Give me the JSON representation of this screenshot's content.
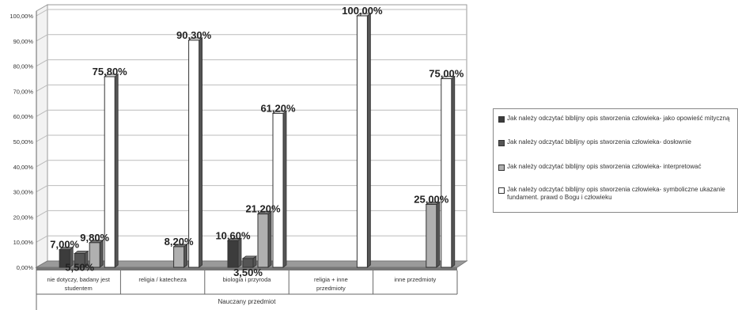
{
  "chart_data": {
    "type": "bar",
    "xlabel": "Nauczany przedmiot",
    "ylabel": "",
    "ylim": [
      0,
      100
    ],
    "y_ticks": [
      "0,00%",
      "10,00%",
      "20,00%",
      "30,00%",
      "40,00%",
      "50,00%",
      "60,00%",
      "70,00%",
      "80,00%",
      "90,00%",
      "100,00%"
    ],
    "categories": [
      "nie dotyczy, badany jest studentem",
      "religia / katecheza",
      "biologia i przyroda",
      "religia + inne przedmioty",
      "inne przedmioty"
    ],
    "series": [
      {
        "name": "Jak należy odczytać biblijny opis stworzenia człowieka- jako opowieść mityczną",
        "color": "#3c3c3c",
        "values": [
          7.0,
          null,
          10.6,
          null,
          null
        ],
        "labels": [
          "7,00%",
          "",
          "10,60%",
          "",
          ""
        ]
      },
      {
        "name": "Jak należy odczytać biblijny opis stworzenia człowieka- dosłownie",
        "color": "#555555",
        "values": [
          5.5,
          null,
          3.5,
          null,
          null
        ],
        "labels": [
          "5,50%",
          "",
          "3,50%",
          "",
          ""
        ]
      },
      {
        "name": "Jak należy odczytać biblijny opis stworzenia człowieka- interpretować",
        "color": "#b0b0b0",
        "values": [
          9.8,
          8.2,
          21.2,
          null,
          25.0
        ],
        "labels": [
          "9,80%",
          "8,20%",
          "21,20%",
          "",
          "25,00%"
        ]
      },
      {
        "name": "Jak należy odczytać biblijny opis stworzenia człowieka- symboliczne ukazanie fundament. prawd o Bogu i człowieku",
        "color": "#ffffff",
        "values": [
          75.8,
          90.3,
          61.2,
          100.0,
          75.0
        ],
        "labels": [
          "75,80%",
          "90,30%",
          "61,20%",
          "100,00%",
          "75,00%"
        ]
      }
    ],
    "legend_position": "right",
    "grid": true
  }
}
